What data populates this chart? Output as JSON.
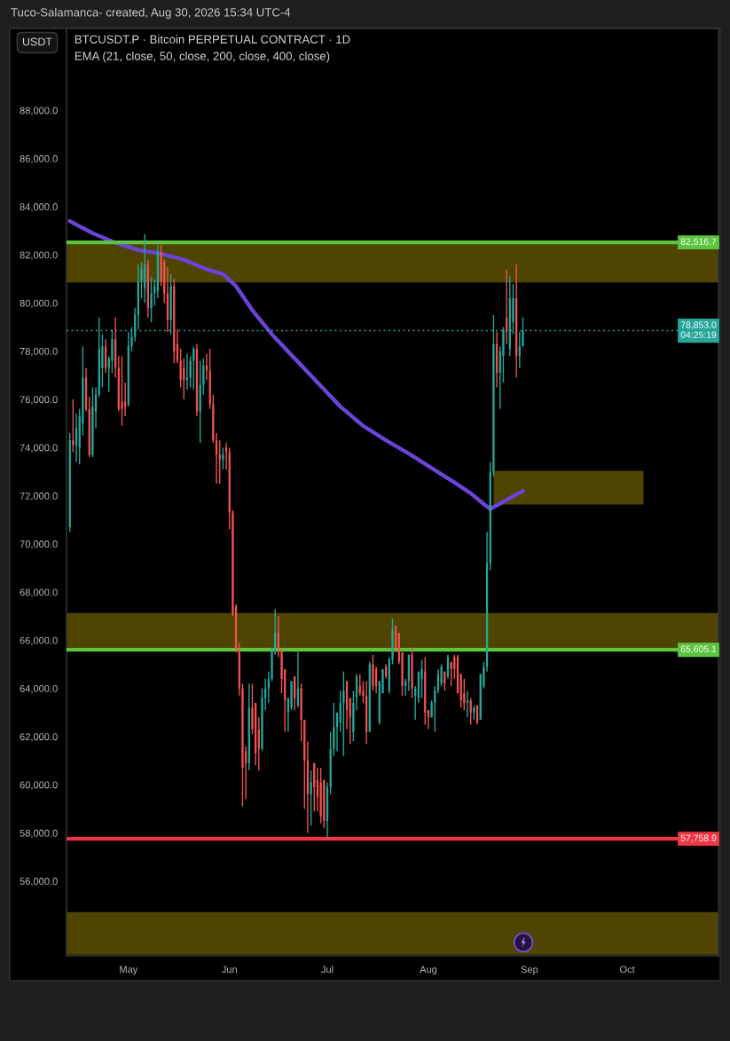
{
  "chart_data": {
    "type": "candlestick",
    "title": "BTCUSDT.P · Bitcoin PERPETUAL CONTRACT · 1D",
    "subtitle": "EMA (21, close, 50, close, 200, close, 400, close)",
    "ylabel": "USDT",
    "annotations": [
      "Tuco-Salamanca- created, Aug 30, 2026 15:34 UTC-4"
    ],
    "x": [
      "2026-04-13",
      "2026-04-14",
      "2026-04-15",
      "2026-04-16",
      "2026-04-17",
      "2026-04-18",
      "2026-04-19",
      "2026-04-20",
      "2026-04-21",
      "2026-04-22",
      "2026-04-23",
      "2026-04-24",
      "2026-04-25",
      "2026-04-26",
      "2026-04-27",
      "2026-04-28",
      "2026-04-29",
      "2026-04-30",
      "2026-05-01",
      "2026-05-02",
      "2026-05-03",
      "2026-05-04",
      "2026-05-05",
      "2026-05-06",
      "2026-05-07",
      "2026-05-08",
      "2026-05-09",
      "2026-05-10",
      "2026-05-11",
      "2026-05-12",
      "2026-05-13",
      "2026-05-14",
      "2026-05-15",
      "2026-05-16",
      "2026-05-17",
      "2026-05-18",
      "2026-05-19",
      "2026-05-20",
      "2026-05-21",
      "2026-05-22",
      "2026-05-23",
      "2026-05-24",
      "2026-05-25",
      "2026-05-26",
      "2026-05-27",
      "2026-05-28",
      "2026-05-29",
      "2026-05-30",
      "2026-05-31",
      "2026-06-01",
      "2026-06-02",
      "2026-06-03",
      "2026-06-04",
      "2026-06-05",
      "2026-06-06",
      "2026-06-07",
      "2026-06-08",
      "2026-06-09",
      "2026-06-10",
      "2026-06-11",
      "2026-06-12",
      "2026-06-13",
      "2026-06-14",
      "2026-06-15",
      "2026-06-16",
      "2026-06-17",
      "2026-06-18",
      "2026-06-19",
      "2026-06-20",
      "2026-06-21",
      "2026-06-22",
      "2026-06-23",
      "2026-06-24",
      "2026-06-25",
      "2026-06-26",
      "2026-06-27",
      "2026-06-28",
      "2026-06-29",
      "2026-06-30",
      "2026-07-01",
      "2026-07-02",
      "2026-07-03",
      "2026-07-04",
      "2026-07-05",
      "2026-07-06",
      "2026-07-07",
      "2026-07-08",
      "2026-07-09",
      "2026-07-10",
      "2026-07-11",
      "2026-07-12",
      "2026-07-13",
      "2026-07-14",
      "2026-07-15",
      "2026-07-16",
      "2026-07-17",
      "2026-07-18",
      "2026-07-19",
      "2026-07-20",
      "2026-07-21",
      "2026-07-22",
      "2026-07-23",
      "2026-07-24",
      "2026-07-25",
      "2026-07-26",
      "2026-07-27",
      "2026-07-28",
      "2026-07-29",
      "2026-07-30",
      "2026-07-31",
      "2026-08-01",
      "2026-08-02",
      "2026-08-03",
      "2026-08-04",
      "2026-08-05",
      "2026-08-06",
      "2026-08-07",
      "2026-08-08",
      "2026-08-09",
      "2026-08-10",
      "2026-08-11",
      "2026-08-12",
      "2026-08-13",
      "2026-08-14",
      "2026-08-15",
      "2026-08-16",
      "2026-08-17",
      "2026-08-18",
      "2026-08-19",
      "2026-08-20",
      "2026-08-21",
      "2026-08-22",
      "2026-08-23",
      "2026-08-24",
      "2026-08-25",
      "2026-08-26",
      "2026-08-27",
      "2026-08-28",
      "2026-08-29",
      "2026-08-30"
    ],
    "ohlc": [
      [
        70700,
        74600,
        70500,
        74300
      ],
      [
        74300,
        76000,
        73800,
        74100
      ],
      [
        74100,
        75400,
        73400,
        74800
      ],
      [
        74000,
        75600,
        73300,
        75300
      ],
      [
        75000,
        78200,
        74500,
        76900
      ],
      [
        76900,
        77300,
        75500,
        75600
      ],
      [
        75600,
        76100,
        73600,
        73700
      ],
      [
        73700,
        76500,
        73600,
        75700
      ],
      [
        75500,
        76500,
        74800,
        76200
      ],
      [
        76200,
        79400,
        76100,
        78100
      ],
      [
        77300,
        78700,
        76500,
        78200
      ],
      [
        78200,
        78500,
        77100,
        77300
      ],
      [
        77300,
        77800,
        76300,
        77700
      ],
      [
        77600,
        78900,
        77100,
        78500
      ],
      [
        78500,
        79400,
        76900,
        77300
      ],
      [
        77300,
        77800,
        75500,
        75600
      ],
      [
        75900,
        77800,
        74900,
        75600
      ],
      [
        75900,
        76700,
        75300,
        75700
      ],
      [
        75800,
        78800,
        75700,
        78200
      ],
      [
        78200,
        79000,
        78000,
        78600
      ],
      [
        78600,
        79800,
        78400,
        79500
      ],
      [
        79500,
        81600,
        78900,
        80900
      ],
      [
        80900,
        81700,
        80200,
        81400
      ],
      [
        80600,
        82850,
        80000,
        81600
      ],
      [
        81600,
        81800,
        79400,
        79800
      ],
      [
        79800,
        81100,
        79200,
        80400
      ],
      [
        80400,
        81000,
        79900,
        80700
      ],
      [
        80500,
        82400,
        80200,
        82100
      ],
      [
        82100,
        82400,
        80700,
        80900
      ],
      [
        81700,
        81800,
        80000,
        80400
      ],
      [
        80400,
        81500,
        78800,
        79300
      ],
      [
        79300,
        81200,
        78700,
        80700
      ],
      [
        80700,
        81000,
        77500,
        78000
      ],
      [
        78300,
        78900,
        77500,
        77600
      ],
      [
        77600,
        78100,
        76500,
        76800
      ],
      [
        77300,
        77700,
        76000,
        76800
      ],
      [
        76800,
        77900,
        76400,
        76900
      ],
      [
        76900,
        77800,
        76500,
        77600
      ],
      [
        77600,
        78200,
        76400,
        78100
      ],
      [
        78100,
        78300,
        75300,
        75500
      ],
      [
        75500,
        77600,
        74200,
        76600
      ],
      [
        76600,
        77700,
        76200,
        77400
      ],
      [
        77400,
        77900,
        76800,
        77200
      ],
      [
        77200,
        78100,
        75600,
        75800
      ],
      [
        75800,
        76200,
        74200,
        74300
      ],
      [
        74300,
        74600,
        72500,
        73700
      ],
      [
        73700,
        74300,
        72500,
        73500
      ],
      [
        73500,
        74000,
        73100,
        73700
      ],
      [
        74000,
        74200,
        73100,
        73800
      ],
      [
        73800,
        74000,
        70600,
        71300
      ],
      [
        71300,
        71400,
        67000,
        67100
      ],
      [
        67400,
        67500,
        65500,
        65600
      ],
      [
        65600,
        65900,
        63700,
        64000
      ],
      [
        64000,
        64200,
        59100,
        60700
      ],
      [
        61400,
        61600,
        59400,
        60900
      ],
      [
        60900,
        64200,
        60600,
        63200
      ],
      [
        63200,
        64200,
        62100,
        62300
      ],
      [
        63400,
        63400,
        60800,
        61300
      ],
      [
        62300,
        62800,
        60600,
        61500
      ],
      [
        61500,
        64000,
        61400,
        63600
      ],
      [
        63600,
        64400,
        63100,
        64000
      ],
      [
        64000,
        64700,
        63400,
        64400
      ],
      [
        64400,
        65700,
        64300,
        65600
      ],
      [
        65600,
        67300,
        65400,
        66300
      ],
      [
        66300,
        67000,
        65300,
        65600
      ],
      [
        65600,
        65600,
        63800,
        64400
      ],
      [
        64800,
        64800,
        62200,
        63500
      ],
      [
        63000,
        63600,
        62200,
        63600
      ],
      [
        63200,
        64300,
        63100,
        64300
      ],
      [
        64500,
        64500,
        63100,
        63600
      ],
      [
        63300,
        65500,
        63200,
        64000
      ],
      [
        64000,
        64200,
        61800,
        62700
      ],
      [
        62700,
        62700,
        59000,
        61000
      ],
      [
        61000,
        61800,
        58000,
        59600
      ],
      [
        59600,
        60600,
        58300,
        60100
      ],
      [
        60900,
        60900,
        58900,
        59900
      ],
      [
        60200,
        60700,
        58900,
        59500
      ],
      [
        60100,
        60700,
        58400,
        58700
      ],
      [
        60200,
        60200,
        58200,
        58500
      ],
      [
        58500,
        60100,
        57800,
        59900
      ],
      [
        59900,
        62200,
        59600,
        61500
      ],
      [
        61500,
        63400,
        61200,
        62400
      ],
      [
        62400,
        63000,
        61400,
        63000
      ],
      [
        62600,
        63900,
        62200,
        63400
      ],
      [
        63400,
        64700,
        61200,
        63900
      ],
      [
        64300,
        64300,
        62300,
        63100
      ],
      [
        63600,
        63600,
        61700,
        62800
      ],
      [
        62200,
        63900,
        61800,
        63400
      ],
      [
        63600,
        64600,
        63100,
        64500
      ],
      [
        64100,
        64600,
        63700,
        63800
      ],
      [
        63900,
        64300,
        63400,
        63700
      ],
      [
        63700,
        64300,
        61700,
        62200
      ],
      [
        62200,
        65100,
        62200,
        65000
      ],
      [
        65000,
        65400,
        63900,
        64100
      ],
      [
        64800,
        64900,
        63800,
        64100
      ],
      [
        62600,
        64300,
        62500,
        64300
      ],
      [
        63800,
        64800,
        63800,
        64800
      ],
      [
        64900,
        65000,
        64400,
        64500
      ],
      [
        63900,
        65300,
        63800,
        65200
      ],
      [
        65200,
        66900,
        65000,
        66400
      ],
      [
        66600,
        66600,
        65500,
        65700
      ],
      [
        66300,
        66300,
        65000,
        65100
      ],
      [
        65500,
        65500,
        63700,
        64100
      ],
      [
        64100,
        64400,
        63700,
        64300
      ],
      [
        64300,
        65400,
        63900,
        65400
      ],
      [
        65400,
        65700,
        63600,
        64000
      ],
      [
        63700,
        64100,
        62700,
        64000
      ],
      [
        63600,
        64700,
        63400,
        64700
      ],
      [
        64400,
        65200,
        63600,
        64800
      ],
      [
        64700,
        65300,
        62500,
        63000
      ],
      [
        63100,
        63100,
        62300,
        62800
      ],
      [
        62800,
        63500,
        62800,
        63400
      ],
      [
        63400,
        64100,
        62200,
        63900
      ],
      [
        63900,
        64800,
        63800,
        64600
      ],
      [
        64200,
        65000,
        64100,
        64900
      ],
      [
        64700,
        64700,
        63900,
        64200
      ],
      [
        64500,
        65400,
        64400,
        65300
      ],
      [
        65100,
        65100,
        64100,
        64800
      ],
      [
        65300,
        65400,
        64400,
        64800
      ],
      [
        65300,
        65400,
        63800,
        63800
      ],
      [
        64600,
        64600,
        63200,
        63500
      ],
      [
        63800,
        64400,
        63100,
        63400
      ],
      [
        63400,
        63900,
        62800,
        63500
      ],
      [
        63500,
        63600,
        62500,
        63000
      ],
      [
        63000,
        63300,
        62700,
        63200
      ],
      [
        63300,
        63300,
        62500,
        62600
      ],
      [
        62700,
        64600,
        62700,
        64600
      ],
      [
        64100,
        65100,
        64000,
        64900
      ],
      [
        64900,
        70500,
        64700,
        69200
      ],
      [
        69200,
        73400,
        68900,
        73000
      ],
      [
        73000,
        79500,
        72800,
        78300
      ],
      [
        78300,
        78800,
        76500,
        77100
      ],
      [
        77100,
        78200,
        75600,
        78000
      ],
      [
        77800,
        79000,
        76700,
        78900
      ],
      [
        79400,
        81400,
        78300,
        78800
      ],
      [
        78100,
        81100,
        77800,
        80200
      ],
      [
        79200,
        80800,
        78700,
        80200
      ],
      [
        80200,
        81600,
        76900,
        77800
      ],
      [
        77800,
        78800,
        77300,
        78200
      ],
      [
        78200,
        79400,
        78200,
        78853
      ]
    ],
    "colors": [
      "#26a69a",
      "#ef5350",
      "#26a69a",
      "#26a69a",
      "#26a69a",
      "#ef5350",
      "#ef5350",
      "#26a69a",
      "#26a69a",
      "#26a69a",
      "#26a69a",
      "#ef5350",
      "#26a69a",
      "#26a69a",
      "#ef5350",
      "#ef5350",
      "#ef5350",
      "#ef5350",
      "#26a69a",
      "#26a69a",
      "#26a69a",
      "#26a69a",
      "#26a69a",
      "#26a69a",
      "#ef5350",
      "#26a69a",
      "#26a69a",
      "#26a69a",
      "#ef5350",
      "#ef5350",
      "#ef5350",
      "#26a69a",
      "#ef5350",
      "#ef5350",
      "#ef5350",
      "#ef5350",
      "#26a69a",
      "#26a69a",
      "#26a69a",
      "#ef5350",
      "#26a69a",
      "#26a69a",
      "#ef5350",
      "#ef5350",
      "#ef5350",
      "#ef5350",
      "#ef5350",
      "#26a69a",
      "#ef5350",
      "#ef5350",
      "#ef5350",
      "#ef5350",
      "#ef5350",
      "#ef5350",
      "#ef5350",
      "#26a69a",
      "#ef5350",
      "#ef5350",
      "#ef5350",
      "#26a69a",
      "#26a69a",
      "#26a69a",
      "#26a69a",
      "#26a69a",
      "#ef5350",
      "#ef5350",
      "#ef5350",
      "#26a69a",
      "#26a69a",
      "#ef5350",
      "#26a69a",
      "#ef5350",
      "#ef5350",
      "#ef5350",
      "#26a69a",
      "#ef5350",
      "#ef5350",
      "#ef5350",
      "#ef5350",
      "#26a69a",
      "#26a69a",
      "#26a69a",
      "#26a69a",
      "#26a69a",
      "#26a69a",
      "#ef5350",
      "#ef5350",
      "#26a69a",
      "#26a69a",
      "#ef5350",
      "#ef5350",
      "#ef5350",
      "#26a69a",
      "#ef5350",
      "#ef5350",
      "#26a69a",
      "#26a69a",
      "#ef5350",
      "#26a69a",
      "#26a69a",
      "#ef5350",
      "#ef5350",
      "#ef5350",
      "#26a69a",
      "#26a69a",
      "#ef5350",
      "#26a69a",
      "#26a69a",
      "#26a69a",
      "#ef5350",
      "#ef5350",
      "#26a69a",
      "#26a69a",
      "#26a69a",
      "#26a69a",
      "#ef5350",
      "#26a69a",
      "#ef5350",
      "#ef5350",
      "#ef5350",
      "#ef5350",
      "#ef5350",
      "#26a69a",
      "#ef5350",
      "#26a69a",
      "#ef5350",
      "#26a69a",
      "#26a69a",
      "#26a69a",
      "#26a69a",
      "#26a69a",
      "#ef5350",
      "#26a69a",
      "#26a69a",
      "#ef5350",
      "#26a69a",
      "#26a69a",
      "#ef5350",
      "#26a69a",
      "#26a69a"
    ],
    "series": [
      {
        "type": "line",
        "color": "#6a44d6",
        "x": [
          "2026-04-13",
          "2026-04-20",
          "2026-04-27",
          "2026-05-04",
          "2026-05-11",
          "2026-05-18",
          "2026-05-25",
          "2026-05-30",
          "2026-06-03",
          "2026-06-08",
          "2026-06-14",
          "2026-06-21",
          "2026-06-28",
          "2026-07-05",
          "2026-07-12",
          "2026-07-19",
          "2026-07-26",
          "2026-08-02",
          "2026-08-09",
          "2026-08-14",
          "2026-08-18",
          "2026-08-20",
          "2026-08-24",
          "2026-08-30"
        ],
        "values": [
          83400,
          82900,
          82500,
          82200,
          82050,
          81800,
          81400,
          81200,
          80700,
          79700,
          78700,
          77700,
          76700,
          75700,
          74900,
          74300,
          73750,
          73150,
          72550,
          72100,
          71650,
          71450,
          71750,
          72200
        ]
      },
      {
        "type": "line",
        "color": "#4f4500",
        "x": [
          "2026-08-21",
          "2026-10-06"
        ],
        "values": [
          null,
          null
        ],
        "lower": [
          71630,
          71630
        ],
        "upper": [
          73030,
          73030
        ]
      }
    ],
    "ref_lines": [
      {
        "axis": "y",
        "value": 82516.7,
        "label": "82,516.7",
        "color": "#5cc43f",
        "line_style": "solid"
      },
      {
        "axis": "y",
        "value": 78853.0,
        "label": "78,853.0\n04:25:19",
        "color": "#26a69a",
        "line_style": "dotted"
      },
      {
        "axis": "y",
        "value": 65605.1,
        "label": "65,605.1",
        "color": "#5cc43f",
        "line_style": "solid"
      },
      {
        "axis": "y",
        "value": 57758.9,
        "label": "57,758.9",
        "color": "#f23645",
        "line_style": "solid"
      }
    ],
    "bands": [
      {
        "axis": "y",
        "from": 80850,
        "to": 82516.7,
        "color": "#4f4500"
      },
      {
        "axis": "y",
        "from": 65605.1,
        "to": 67130,
        "color": "#4f4500"
      },
      {
        "axis": "y",
        "from": 52950,
        "to": 54710,
        "color": "#4f4500"
      }
    ],
    "xlim": [
      "2026-04-12",
      "2026-10-29"
    ],
    "xticks": [
      {
        "value": "2026-05-01",
        "label": "May"
      },
      {
        "value": "2026-06-01",
        "label": "Jun"
      },
      {
        "value": "2026-07-01",
        "label": "Jul"
      },
      {
        "value": "2026-08-01",
        "label": "Aug"
      },
      {
        "value": "2026-09-01",
        "label": "Sep"
      },
      {
        "value": "2026-10-01",
        "label": "Oct"
      }
    ],
    "ylim": [
      52900,
      91400
    ],
    "yticks": [
      {
        "value": 56000,
        "label": "56,000.0"
      },
      {
        "value": 58000,
        "label": "58,000.0"
      },
      {
        "value": 60000,
        "label": "60,000.0"
      },
      {
        "value": 62000,
        "label": "62,000.0"
      },
      {
        "value": 64000,
        "label": "64,000.0"
      },
      {
        "value": 66000,
        "label": "66,000.0"
      },
      {
        "value": 68000,
        "label": "68,000.0"
      },
      {
        "value": 70000,
        "label": "70,000.0"
      },
      {
        "value": 72000,
        "label": "72,000.0"
      },
      {
        "value": 74000,
        "label": "74,000.0"
      },
      {
        "value": 76000,
        "label": "76,000.0"
      },
      {
        "value": 78000,
        "label": "78,000.0"
      },
      {
        "value": 80000,
        "label": "80,000.0"
      },
      {
        "value": 82000,
        "label": "82,000.0"
      },
      {
        "value": 84000,
        "label": "84,000.0"
      },
      {
        "value": 86000,
        "label": "86,000.0"
      },
      {
        "value": 88000,
        "label": "88,000.0"
      }
    ]
  }
}
